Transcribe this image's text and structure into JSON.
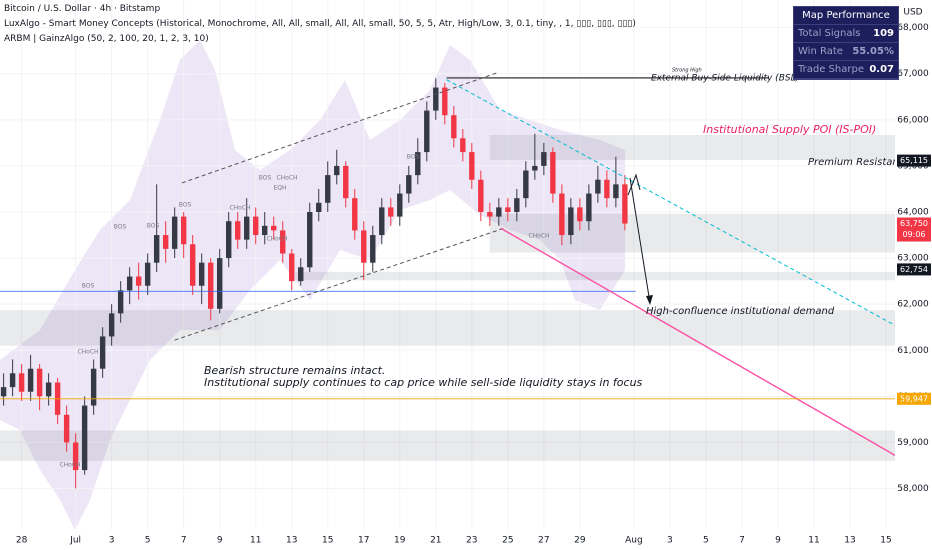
{
  "header": {
    "title": "Bitcoin / U.S. Dollar · 4h · Bitstamp",
    "indicator_1": "LuxAlgo - Smart Money Concepts (Historical, Monochrome, All, All, small, All, All, small, 50, 5, 5, Atr, High/Low, 3, 0.1, tiny, , 1, ▯▯▯, ▯▯▯, ▯▯▯)",
    "indicator_2": "ARBM | GainzAlgo (50, 2, 100, 20, 1, 2, 3, 10)"
  },
  "performance": {
    "title": "Map Performance",
    "rows": [
      [
        "Total Signals",
        "109"
      ],
      [
        "Win Rate",
        "55.05%"
      ],
      [
        "Trade Sharpe",
        "0.07"
      ]
    ]
  },
  "chart_data": {
    "type": "candlestick",
    "currency": "USD",
    "up_color": "#363a45",
    "down_color": "#f23645",
    "x": [
      -1,
      -0.5,
      0,
      0.5,
      1,
      1.5,
      2,
      2.5,
      3,
      3.5,
      4,
      4.5,
      5,
      5.5,
      6,
      6.5,
      7,
      7.5,
      8,
      8.5,
      9,
      9.5,
      10,
      10.5,
      11,
      11.5,
      12,
      12.5,
      13,
      13.5,
      14,
      14.5,
      15,
      15.5,
      16,
      16.5,
      17,
      17.5,
      18,
      18.5,
      19,
      19.5,
      20,
      20.5,
      21,
      21.5,
      22,
      22.5,
      23,
      23.5,
      24,
      24.5,
      25,
      25.5,
      26,
      26.5,
      27,
      27.5,
      28,
      28.5,
      29,
      29.5,
      30,
      30.5,
      31,
      31.5,
      32,
      32.5,
      33,
      33.5
    ],
    "open": [
      60000,
      60200,
      60500,
      60100,
      60600,
      60000,
      60300,
      59600,
      59000,
      58400,
      59800,
      60600,
      61300,
      61800,
      62300,
      62600,
      62400,
      62900,
      63500,
      63200,
      63900,
      63300,
      62400,
      62900,
      61900,
      63000,
      63800,
      63400,
      63900,
      63500,
      63700,
      63600,
      63100,
      62500,
      62800,
      64000,
      64200,
      64800,
      65000,
      64300,
      63600,
      62900,
      63500,
      64100,
      63900,
      64400,
      64800,
      65300,
      66200,
      66700,
      66100,
      65600,
      65300,
      64700,
      64000,
      63900,
      64100,
      64000,
      64300,
      64900,
      65000,
      65300,
      64400,
      63500,
      64100,
      63800,
      64400,
      64700,
      64300,
      64600
    ],
    "high": [
      60500,
      60800,
      60700,
      60900,
      60700,
      60500,
      60400,
      59800,
      59200,
      60000,
      60800,
      61500,
      62000,
      62500,
      62800,
      62900,
      63100,
      64600,
      63800,
      64100,
      64000,
      63500,
      63100,
      63000,
      63200,
      64000,
      64000,
      64300,
      64100,
      64000,
      63900,
      63800,
      63200,
      63000,
      64200,
      64500,
      65100,
      65350,
      65100,
      64500,
      63800,
      63700,
      64300,
      64300,
      64600,
      65000,
      65600,
      66400,
      66900,
      66800,
      66300,
      65800,
      65500,
      64900,
      64200,
      64300,
      64300,
      64500,
      65100,
      65700,
      65500,
      65400,
      64600,
      64300,
      64300,
      64600,
      65000,
      64900,
      65200,
      64800
    ],
    "low": [
      59800,
      60000,
      59900,
      59900,
      59700,
      59800,
      59400,
      58800,
      58000,
      58300,
      59600,
      60400,
      61100,
      61600,
      62000,
      62100,
      62200,
      62700,
      62900,
      63000,
      63000,
      62200,
      62000,
      61650,
      61800,
      62800,
      63200,
      63200,
      63300,
      63300,
      63400,
      62900,
      62300,
      62400,
      62700,
      63800,
      64000,
      64600,
      64100,
      63400,
      62520,
      62700,
      63300,
      63700,
      63700,
      64200,
      64600,
      65100,
      66000,
      65900,
      65400,
      65100,
      64500,
      63800,
      63700,
      63700,
      63800,
      63800,
      64100,
      64700,
      64800,
      64200,
      63280,
      63300,
      63600,
      63600,
      64200,
      64100,
      64100,
      63600
    ],
    "close": [
      60200,
      60500,
      60100,
      60600,
      60000,
      60300,
      59600,
      59000,
      58400,
      59800,
      60600,
      61300,
      61800,
      62300,
      62600,
      62400,
      62900,
      63500,
      63200,
      63900,
      63300,
      62400,
      62900,
      61900,
      63000,
      63800,
      63400,
      63900,
      63500,
      63700,
      63600,
      63100,
      62500,
      62800,
      64000,
      64200,
      64800,
      65000,
      64300,
      63600,
      62900,
      63500,
      64100,
      63900,
      64400,
      64800,
      65300,
      66200,
      66700,
      66100,
      65600,
      65300,
      64700,
      64000,
      63900,
      64100,
      64000,
      64300,
      64900,
      65000,
      65300,
      64400,
      63500,
      64100,
      63800,
      64400,
      64700,
      64300,
      64600,
      63750
    ],
    "xlim": [
      -1.2,
      48.5
    ],
    "xticks": [
      {
        "value": 0,
        "label": "28"
      },
      {
        "value": 3,
        "label": "Jul"
      },
      {
        "value": 5,
        "label": "3"
      },
      {
        "value": 7,
        "label": "5"
      },
      {
        "value": 9,
        "label": "7"
      },
      {
        "value": 11,
        "label": "9"
      },
      {
        "value": 13,
        "label": "11"
      },
      {
        "value": 15,
        "label": "13"
      },
      {
        "value": 17,
        "label": "15"
      },
      {
        "value": 19,
        "label": "17"
      },
      {
        "value": 21,
        "label": "19"
      },
      {
        "value": 23,
        "label": "21"
      },
      {
        "value": 25,
        "label": "23"
      },
      {
        "value": 27,
        "label": "25"
      },
      {
        "value": 29,
        "label": "27"
      },
      {
        "value": 31,
        "label": "29"
      },
      {
        "value": 34,
        "label": "Aug"
      },
      {
        "value": 36,
        "label": "3"
      },
      {
        "value": 38,
        "label": "5"
      },
      {
        "value": 40,
        "label": "7"
      },
      {
        "value": 42,
        "label": "9"
      },
      {
        "value": 44,
        "label": "11"
      },
      {
        "value": 46,
        "label": "13"
      },
      {
        "value": 48,
        "label": "15"
      }
    ],
    "ylim": [
      57100,
      68600
    ],
    "yticks": [
      {
        "value": 58000,
        "label": "58,000"
      },
      {
        "value": 59000,
        "label": "59,000"
      },
      {
        "value": 60000,
        "label": "60,000"
      },
      {
        "value": 61000,
        "label": "61,000"
      },
      {
        "value": 62000,
        "label": "62,000"
      },
      {
        "value": 63000,
        "label": "63,000"
      },
      {
        "value": 64000,
        "label": "64,000"
      },
      {
        "value": 65000,
        "label": "65,000"
      },
      {
        "value": 66000,
        "label": "66,000"
      },
      {
        "value": 67000,
        "label": "67,000"
      },
      {
        "value": 68000,
        "label": "68,000"
      }
    ],
    "price_labels": [
      {
        "value": 65115,
        "label": "65,115",
        "color": "#131722"
      },
      {
        "value": 63750,
        "label": "63,750",
        "color": "#f23645"
      },
      {
        "value": 62754,
        "label": "62,754",
        "color": "#131722"
      },
      {
        "value": 59947,
        "label": "59,947",
        "color": "#f7a600"
      }
    ],
    "countdown": "09:06",
    "levels": [
      {
        "value": 62280,
        "to": 34.1,
        "color": "#2962ff"
      }
    ],
    "zones": [
      {
        "from": 26.0,
        "to": 48.5,
        "low": 65130,
        "high": 65670
      },
      {
        "from": 15.2,
        "to": 48.5,
        "low": 62520,
        "high": 62700
      },
      {
        "from": -1.2,
        "to": 48.5,
        "low": 61100,
        "high": 61870
      },
      {
        "from": -1.2,
        "to": 48.5,
        "low": 58600,
        "high": 59260
      },
      {
        "from": 26.0,
        "to": 48.5,
        "low": 63120,
        "high": 63960
      }
    ],
    "trendlines": [
      {
        "from": [
          8.9,
          64630
        ],
        "to": [
          26.4,
          67020
        ],
        "color": "#555",
        "dash": true
      },
      {
        "from": [
          8.5,
          61220
        ],
        "to": [
          26.8,
          63650
        ],
        "color": "#555",
        "dash": true
      },
      {
        "from": [
          23.6,
          66910
        ],
        "to": [
          41.5,
          66910
        ],
        "color": "#555",
        "dash": false
      },
      {
        "from": [
          23.6,
          66870
        ],
        "to": [
          48.5,
          61540
        ],
        "color": "#00bcd4",
        "dash": true
      },
      {
        "from": [
          26.6,
          63650
        ],
        "to": [
          48.5,
          58720
        ],
        "color": "#ff4fa3",
        "dash": false
      }
    ],
    "annotations": {
      "strong_high": "Strong High",
      "bsl": "External Buy-Side Liquidity (BSL)",
      "supply": "Institutional Supply POI (IS-POI)",
      "resistance": "Premium Resistance",
      "demand": "High-confluence institutional demand",
      "note_1": "Bearish structure remains intact.",
      "note_2": "Institutional supply continues to cap price while sell-side liquidity stays in focus"
    },
    "structure_labels": [
      "BOS",
      "BOS",
      "BOS",
      "BOS",
      "BOS",
      "BOS",
      "CHoCH",
      "CHoCH",
      "CHoCH",
      "CHoCH",
      "CHoCH",
      "CHoCH",
      "EQH"
    ]
  }
}
